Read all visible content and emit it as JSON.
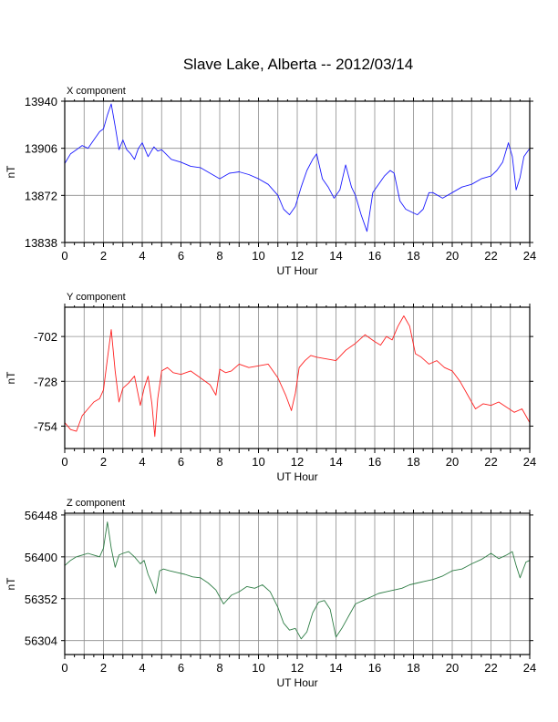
{
  "title": "Slave Lake, Alberta -- 2012/03/14",
  "chart_data": [
    {
      "type": "line",
      "panel_label": "X component",
      "xlabel": "UT Hour",
      "ylabel": "nT",
      "xlim": [
        0,
        24
      ],
      "ylim": [
        13838,
        13940
      ],
      "x_ticks": [
        0,
        2,
        4,
        6,
        8,
        10,
        12,
        14,
        16,
        18,
        20,
        22,
        24
      ],
      "y_ticks": [
        13838,
        13872,
        13906,
        13940
      ],
      "grid": true,
      "series": [
        {
          "color": "#1a1aff",
          "x": [
            0,
            0.3,
            0.6,
            0.9,
            1.2,
            1.5,
            1.8,
            2.0,
            2.2,
            2.4,
            2.6,
            2.8,
            3.0,
            3.2,
            3.4,
            3.6,
            3.8,
            4.0,
            4.3,
            4.6,
            4.8,
            5.0,
            5.5,
            6.0,
            6.5,
            7.0,
            7.5,
            8.0,
            8.5,
            9.0,
            9.5,
            10.0,
            10.5,
            11.0,
            11.3,
            11.6,
            11.9,
            12.2,
            12.5,
            12.8,
            13.0,
            13.3,
            13.6,
            13.9,
            14.2,
            14.5,
            14.8,
            15.0,
            15.3,
            15.6,
            15.9,
            16.2,
            16.5,
            16.8,
            17.0,
            17.3,
            17.6,
            17.9,
            18.2,
            18.5,
            18.8,
            19.0,
            19.5,
            20.0,
            20.5,
            21.0,
            21.5,
            22.0,
            22.3,
            22.6,
            22.9,
            23.1,
            23.3,
            23.5,
            23.7,
            24.0
          ],
          "y": [
            13895,
            13902,
            13905,
            13908,
            13906,
            13912,
            13918,
            13920,
            13930,
            13938,
            13922,
            13905,
            13912,
            13905,
            13902,
            13898,
            13906,
            13910,
            13900,
            13907,
            13904,
            13905,
            13898,
            13896,
            13893,
            13892,
            13888,
            13884,
            13888,
            13889,
            13887,
            13884,
            13880,
            13872,
            13862,
            13858,
            13864,
            13878,
            13890,
            13898,
            13902,
            13884,
            13878,
            13870,
            13876,
            13894,
            13878,
            13872,
            13858,
            13846,
            13874,
            13880,
            13886,
            13890,
            13888,
            13868,
            13862,
            13860,
            13858,
            13862,
            13874,
            13874,
            13870,
            13874,
            13878,
            13880,
            13884,
            13886,
            13890,
            13896,
            13910,
            13900,
            13876,
            13885,
            13900,
            13906
          ]
        }
      ]
    },
    {
      "type": "line",
      "panel_label": "Y component",
      "xlabel": "UT Hour",
      "ylabel": "nT",
      "xlim": [
        0,
        24
      ],
      "ylim": [
        -767,
        -685
      ],
      "x_ticks": [
        0,
        2,
        4,
        6,
        8,
        10,
        12,
        14,
        16,
        18,
        20,
        22,
        24
      ],
      "y_ticks": [
        -754,
        -728,
        -702
      ],
      "grid": true,
      "series": [
        {
          "color": "#ff2020",
          "x": [
            0,
            0.3,
            0.6,
            0.9,
            1.2,
            1.5,
            1.8,
            2.0,
            2.2,
            2.4,
            2.6,
            2.8,
            3.0,
            3.3,
            3.6,
            3.9,
            4.1,
            4.3,
            4.5,
            4.65,
            4.8,
            5.0,
            5.3,
            5.6,
            6.0,
            6.5,
            7.0,
            7.5,
            7.8,
            8.0,
            8.3,
            8.6,
            9.0,
            9.5,
            10.0,
            10.5,
            11.0,
            11.4,
            11.7,
            11.9,
            12.1,
            12.4,
            12.7,
            13.0,
            13.5,
            14.0,
            14.5,
            15.0,
            15.5,
            16.0,
            16.3,
            16.6,
            16.9,
            17.2,
            17.5,
            17.8,
            18.1,
            18.4,
            18.8,
            19.2,
            19.6,
            20.0,
            20.4,
            20.8,
            21.2,
            21.6,
            22.0,
            22.4,
            22.8,
            23.2,
            23.6,
            24.0
          ],
          "y": [
            -752,
            -756,
            -757,
            -748,
            -744,
            -740,
            -738,
            -733,
            -715,
            -698,
            -722,
            -740,
            -732,
            -729,
            -725,
            -742,
            -732,
            -725,
            -741,
            -760,
            -738,
            -722,
            -720,
            -723,
            -724,
            -722,
            -726,
            -730,
            -736,
            -721,
            -723,
            -722,
            -718,
            -720,
            -719,
            -718,
            -726,
            -736,
            -745,
            -735,
            -720,
            -716,
            -713,
            -714,
            -715,
            -716,
            -710,
            -706,
            -701,
            -705,
            -707,
            -702,
            -704,
            -696,
            -690,
            -696,
            -712,
            -714,
            -718,
            -716,
            -720,
            -722,
            -728,
            -736,
            -744,
            -741,
            -742,
            -740,
            -743,
            -746,
            -744,
            -752
          ]
        }
      ]
    },
    {
      "type": "line",
      "panel_label": "Z component",
      "xlabel": "UT Hour",
      "ylabel": "nT",
      "xlim": [
        0,
        24
      ],
      "ylim": [
        56288,
        56450
      ],
      "x_ticks": [
        0,
        2,
        4,
        6,
        8,
        10,
        12,
        14,
        16,
        18,
        20,
        22,
        24
      ],
      "y_ticks": [
        56304,
        56352,
        56400,
        56448
      ],
      "grid": true,
      "series": [
        {
          "color": "#2e7d45",
          "x": [
            0,
            0.3,
            0.6,
            0.9,
            1.2,
            1.5,
            1.8,
            2.0,
            2.2,
            2.4,
            2.6,
            2.8,
            3.0,
            3.3,
            3.6,
            3.9,
            4.1,
            4.3,
            4.5,
            4.7,
            4.9,
            5.1,
            5.4,
            5.8,
            6.2,
            6.6,
            7.0,
            7.4,
            7.8,
            8.2,
            8.6,
            9.0,
            9.4,
            9.8,
            10.2,
            10.6,
            11.0,
            11.3,
            11.6,
            11.9,
            12.2,
            12.5,
            12.8,
            13.1,
            13.4,
            13.7,
            14.0,
            14.3,
            14.6,
            15.0,
            15.4,
            15.8,
            16.2,
            16.6,
            17.0,
            17.4,
            17.8,
            18.2,
            18.6,
            19.0,
            19.5,
            20.0,
            20.5,
            21.0,
            21.5,
            22.0,
            22.4,
            22.8,
            23.1,
            23.3,
            23.5,
            23.8,
            24.0
          ],
          "y": [
            56390,
            56396,
            56400,
            56402,
            56404,
            56402,
            56400,
            56410,
            56440,
            56410,
            56388,
            56402,
            56404,
            56406,
            56400,
            56392,
            56396,
            56380,
            56370,
            56358,
            56384,
            56386,
            56384,
            56382,
            56380,
            56377,
            56376,
            56370,
            56362,
            56346,
            56356,
            56360,
            56366,
            56364,
            56368,
            56360,
            56342,
            56324,
            56316,
            56318,
            56306,
            56314,
            56336,
            56348,
            56350,
            56340,
            56308,
            56318,
            56330,
            56346,
            56350,
            56354,
            56358,
            56360,
            56362,
            56364,
            56368,
            56370,
            56372,
            56374,
            56378,
            56384,
            56386,
            56392,
            56397,
            56404,
            56398,
            56402,
            56406,
            56390,
            56376,
            56394,
            56396
          ]
        }
      ]
    }
  ]
}
